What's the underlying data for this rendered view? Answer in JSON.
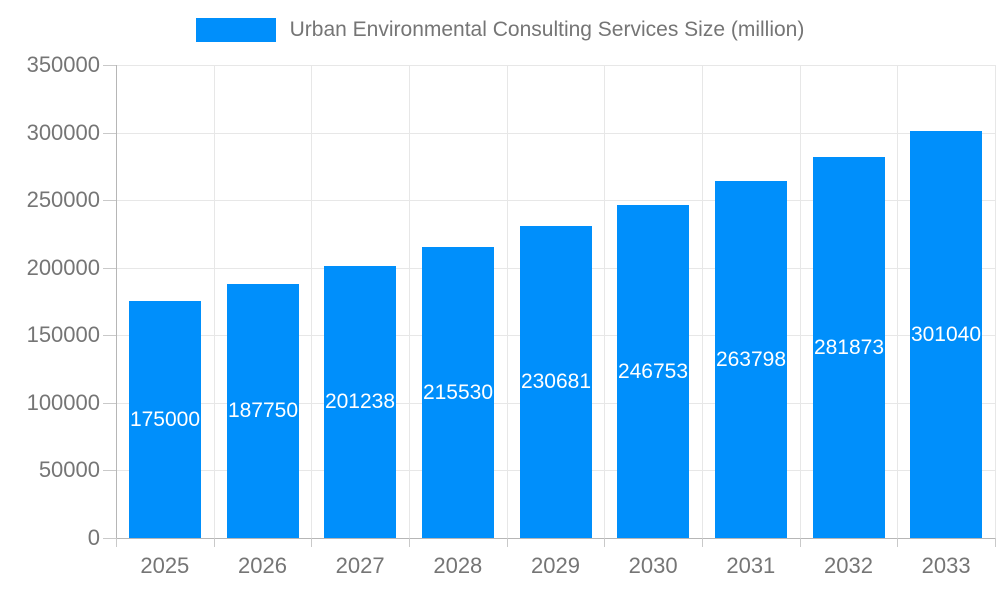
{
  "legend": {
    "label": "Urban Environmental Consulting Services Size (million)",
    "swatch_color": "#008FFB"
  },
  "chart_data": {
    "type": "bar",
    "title": "",
    "categories": [
      "2025",
      "2026",
      "2027",
      "2028",
      "2029",
      "2030",
      "2031",
      "2032",
      "2033"
    ],
    "series": [
      {
        "name": "Urban Environmental Consulting Services Size (million)",
        "values": [
          175000,
          187750,
          201238,
          215530,
          230681,
          246753,
          263798,
          281873,
          301040
        ]
      }
    ],
    "data_labels": [
      "175000",
      "187750",
      "201238",
      "215530",
      "230681",
      "246753",
      "263798",
      "281873",
      "301040"
    ],
    "xlabel": "",
    "ylabel": "",
    "ylim": [
      0,
      350000
    ],
    "ytick_step": 50000,
    "yticks": [
      0,
      50000,
      100000,
      150000,
      200000,
      250000,
      300000,
      350000
    ],
    "grid": true,
    "legend_position": "top",
    "colors": {
      "bar": "#008FFB",
      "bar_label_text": "#FFFFFF",
      "axis_text": "#757575",
      "gridline": "#E7E7E7",
      "axis_line": "#B6B6B6",
      "tick": "#C9C9C9"
    }
  }
}
